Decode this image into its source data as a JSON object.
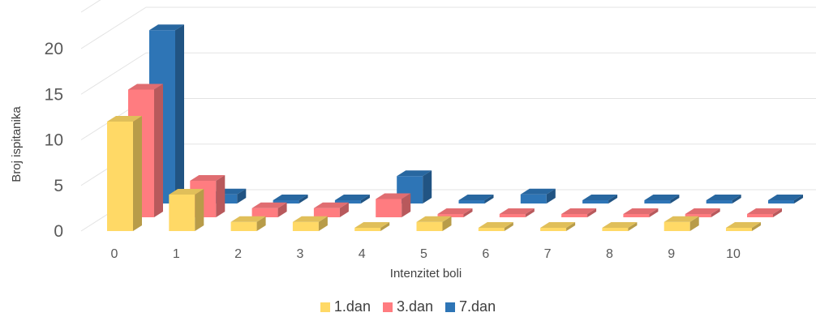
{
  "chart_data": {
    "type": "bar",
    "categories": [
      "0",
      "1",
      "2",
      "3",
      "4",
      "5",
      "6",
      "7",
      "8",
      "9",
      "10"
    ],
    "series": [
      {
        "name": "1.dan",
        "color": "#FFD966",
        "values": [
          12,
          4,
          1,
          1,
          0,
          1,
          0,
          0,
          0,
          1,
          0
        ]
      },
      {
        "name": "3.dan",
        "color": "#FF7C80",
        "values": [
          14,
          4,
          1,
          1,
          2,
          0,
          0,
          0,
          0,
          0,
          0
        ]
      },
      {
        "name": "7.dan",
        "color": "#2E75B6",
        "values": [
          19,
          1,
          0,
          0,
          3,
          0,
          1,
          0,
          0,
          0,
          0
        ]
      }
    ],
    "yticks": [
      "0",
      "5",
      "10",
      "15",
      "20"
    ],
    "ylim": [
      0,
      24
    ],
    "xlabel": "Intenzitet boli",
    "ylabel": "Broj ispitanika",
    "legend_position": "bottom",
    "grid": true
  }
}
